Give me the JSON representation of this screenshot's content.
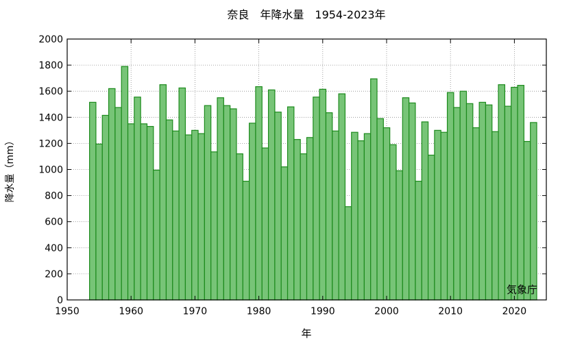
{
  "chart_data": {
    "type": "bar",
    "title": "奈良　年降水量　1954-2023年",
    "xlabel": "年",
    "ylabel": "降水量（mm）",
    "credit": "気象庁",
    "xlim": [
      1950,
      2025
    ],
    "ylim": [
      0,
      2000
    ],
    "xticks": [
      1950,
      1960,
      1970,
      1980,
      1990,
      2000,
      2010,
      2020
    ],
    "yticks": [
      0,
      200,
      400,
      600,
      800,
      1000,
      1200,
      1400,
      1600,
      1800,
      2000
    ],
    "grid": true,
    "colors": {
      "bar_fill": "#77c477",
      "bar_stroke": "#1c8a1c",
      "grid": "#888888"
    },
    "x": [
      1954,
      1955,
      1956,
      1957,
      1958,
      1959,
      1960,
      1961,
      1962,
      1963,
      1964,
      1965,
      1966,
      1967,
      1968,
      1969,
      1970,
      1971,
      1972,
      1973,
      1974,
      1975,
      1976,
      1977,
      1978,
      1979,
      1980,
      1981,
      1982,
      1983,
      1984,
      1985,
      1986,
      1987,
      1988,
      1989,
      1990,
      1991,
      1992,
      1993,
      1994,
      1995,
      1996,
      1997,
      1998,
      1999,
      2000,
      2001,
      2002,
      2003,
      2004,
      2005,
      2006,
      2007,
      2008,
      2009,
      2010,
      2011,
      2012,
      2013,
      2014,
      2015,
      2016,
      2017,
      2018,
      2019,
      2020,
      2021,
      2022,
      2023
    ],
    "values": [
      1515,
      1195,
      1415,
      1620,
      1475,
      1790,
      1350,
      1555,
      1350,
      1330,
      995,
      1650,
      1380,
      1295,
      1625,
      1265,
      1300,
      1275,
      1490,
      1135,
      1550,
      1490,
      1465,
      1120,
      910,
      1355,
      1635,
      1165,
      1610,
      1440,
      1020,
      1480,
      1230,
      1120,
      1245,
      1555,
      1615,
      1435,
      1295,
      1580,
      715,
      1285,
      1220,
      1275,
      1695,
      1390,
      1320,
      1190,
      990,
      1550,
      1510,
      910,
      1365,
      1110,
      1300,
      1285,
      1590,
      1475,
      1600,
      1505,
      1320,
      1515,
      1495,
      1290,
      1650,
      1485,
      1630,
      1645,
      1215,
      1360
    ]
  }
}
